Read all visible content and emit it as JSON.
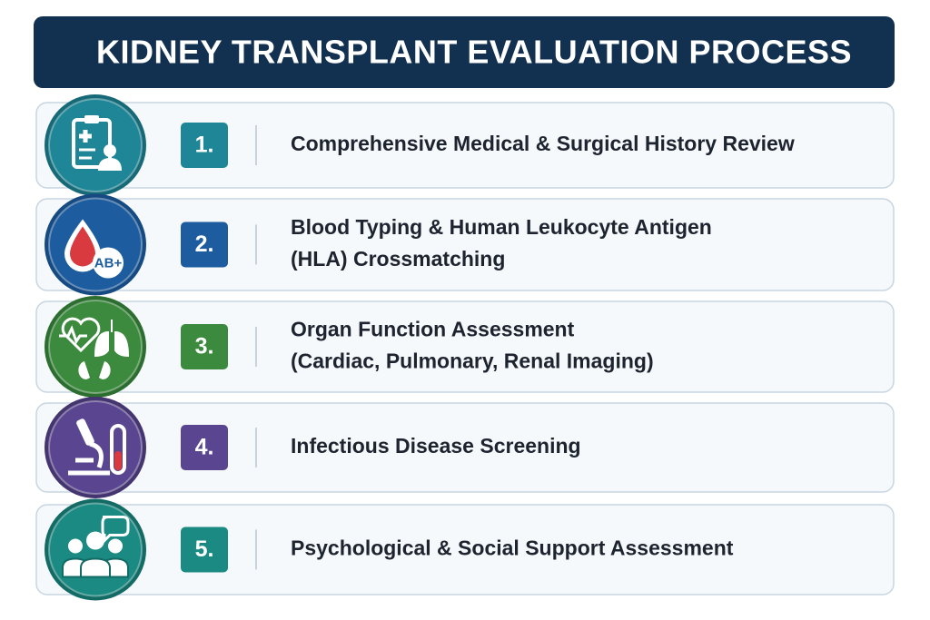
{
  "header": {
    "title": "KIDNEY TRANSPLANT EVALUATION PROCESS"
  },
  "steps": [
    {
      "number": "1.",
      "lines": [
        "Comprehensive Medical & Surgical History Review"
      ]
    },
    {
      "number": "2.",
      "lines": [
        "Blood Typing & Human Leukocyte Antigen",
        "(HLA) Crossmatching"
      ],
      "icon_text": "AB+"
    },
    {
      "number": "3.",
      "lines": [
        "Organ Function Assessment",
        "(Cardiac, Pulmonary, Renal Imaging)"
      ]
    },
    {
      "number": "4.",
      "lines": [
        "Infectious Disease Screening"
      ]
    },
    {
      "number": "5.",
      "lines": [
        "Psychological & Social Support Assessment"
      ]
    }
  ]
}
